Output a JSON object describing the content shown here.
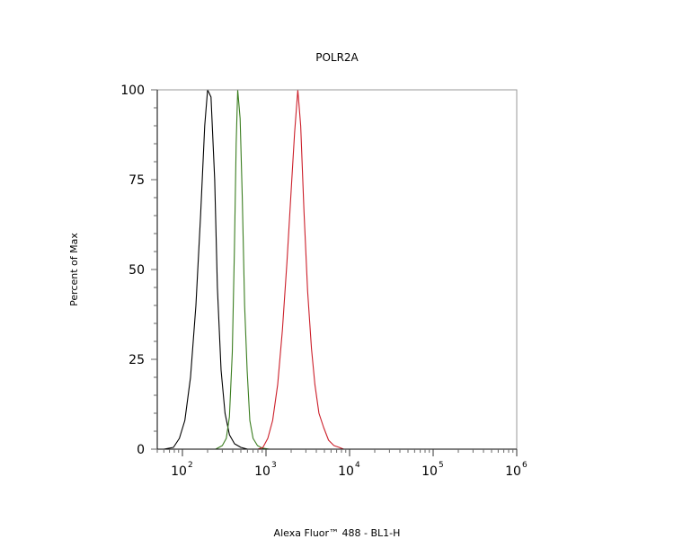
{
  "chart_data": {
    "type": "line",
    "title": "POLR2A",
    "xlabel": "Alexa Fluor™ 488 - BL1-H",
    "ylabel": "Percent of Max",
    "x_scale": "log",
    "xlim": [
      50,
      1000000
    ],
    "ylim": [
      0,
      100
    ],
    "x_ticks": [
      {
        "base": "10",
        "exp": "2",
        "value": 100
      },
      {
        "base": "10",
        "exp": "3",
        "value": 1000
      },
      {
        "base": "10",
        "exp": "4",
        "value": 10000
      },
      {
        "base": "10",
        "exp": "5",
        "value": 100000
      },
      {
        "base": "10",
        "exp": "6",
        "value": 1000000
      }
    ],
    "y_ticks": [
      {
        "label": "0",
        "value": 0
      },
      {
        "label": "25",
        "value": 25
      },
      {
        "label": "50",
        "value": 50
      },
      {
        "label": "75",
        "value": 75
      },
      {
        "label": "100",
        "value": 100
      }
    ],
    "grid": false,
    "series": [
      {
        "color": "#000000",
        "points": [
          [
            60,
            0
          ],
          [
            78,
            0.5
          ],
          [
            92,
            3
          ],
          [
            107,
            8
          ],
          [
            125,
            20
          ],
          [
            145,
            40
          ],
          [
            165,
            65
          ],
          [
            185,
            90
          ],
          [
            200,
            100
          ],
          [
            220,
            98
          ],
          [
            243,
            75
          ],
          [
            262,
            45
          ],
          [
            290,
            22
          ],
          [
            323,
            10
          ],
          [
            365,
            4
          ],
          [
            420,
            1.5
          ],
          [
            500,
            0.5
          ],
          [
            600,
            0
          ]
        ]
      },
      {
        "color": "#3a7d1f",
        "points": [
          [
            250,
            0
          ],
          [
            300,
            1
          ],
          [
            335,
            3
          ],
          [
            365,
            9
          ],
          [
            395,
            27
          ],
          [
            418,
            55
          ],
          [
            440,
            85
          ],
          [
            458,
            100
          ],
          [
            490,
            92
          ],
          [
            520,
            70
          ],
          [
            555,
            40
          ],
          [
            595,
            22
          ],
          [
            640,
            8
          ],
          [
            700,
            3
          ],
          [
            790,
            1
          ],
          [
            900,
            0.3
          ],
          [
            1100,
            0
          ]
        ]
      },
      {
        "color": "#cc1f2a",
        "points": [
          [
            800,
            0
          ],
          [
            920,
            0.5
          ],
          [
            1050,
            3
          ],
          [
            1200,
            8
          ],
          [
            1380,
            18
          ],
          [
            1570,
            33
          ],
          [
            1780,
            52
          ],
          [
            2000,
            72
          ],
          [
            2200,
            88
          ],
          [
            2400,
            100
          ],
          [
            2600,
            90
          ],
          [
            2850,
            66
          ],
          [
            3150,
            44
          ],
          [
            3500,
            28
          ],
          [
            3850,
            18
          ],
          [
            4300,
            10
          ],
          [
            4900,
            6
          ],
          [
            5600,
            2.5
          ],
          [
            6500,
            1
          ],
          [
            7500,
            0.5
          ],
          [
            8500,
            0
          ]
        ]
      }
    ]
  }
}
